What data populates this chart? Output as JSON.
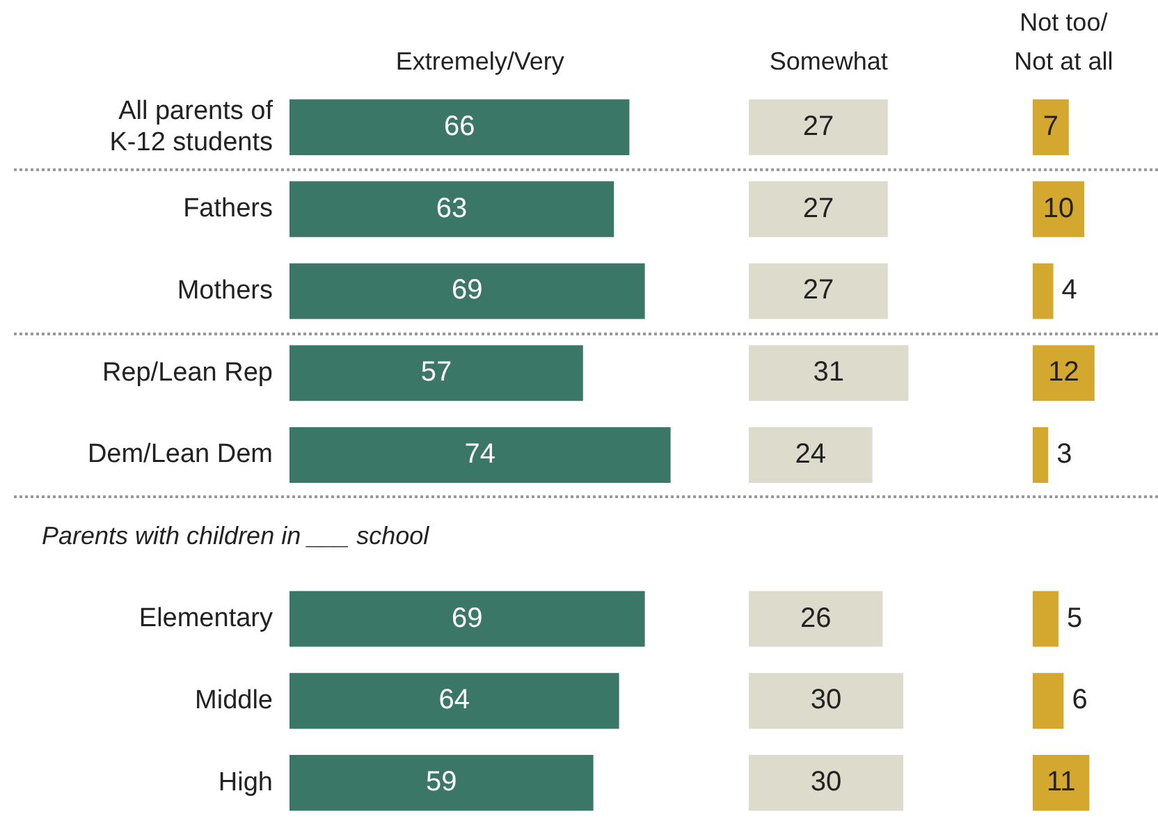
{
  "chart_data": [
    {
      "type": "bar",
      "orientation": "horizontal",
      "title": "Extremely/Very",
      "categories": [
        "All parents of K-12 students",
        "Fathers",
        "Mothers",
        "Rep/Lean Rep",
        "Dem/Lean Dem",
        null,
        "Elementary",
        "Middle",
        "High"
      ],
      "values": [
        66,
        63,
        69,
        57,
        74,
        null,
        69,
        64,
        59
      ],
      "color": "#3a7767",
      "data_labels": true,
      "tick_labels": "y",
      "annotations": [
        "Parents with children in ___ school"
      ]
    },
    {
      "type": "bar",
      "orientation": "horizontal",
      "title": "Somewhat",
      "values": [
        27,
        27,
        27,
        31,
        24,
        null,
        26,
        30,
        30
      ],
      "color": "#dddbcc",
      "data_labels": true,
      "tick_labels": false
    },
    {
      "type": "bar",
      "orientation": "horizontal",
      "title": "Not too/\nNot at all",
      "values": [
        7,
        10,
        4,
        12,
        3,
        null,
        5,
        6,
        11
      ],
      "color": "#d4a72e",
      "data_labels": true,
      "tick_labels": false
    }
  ]
}
